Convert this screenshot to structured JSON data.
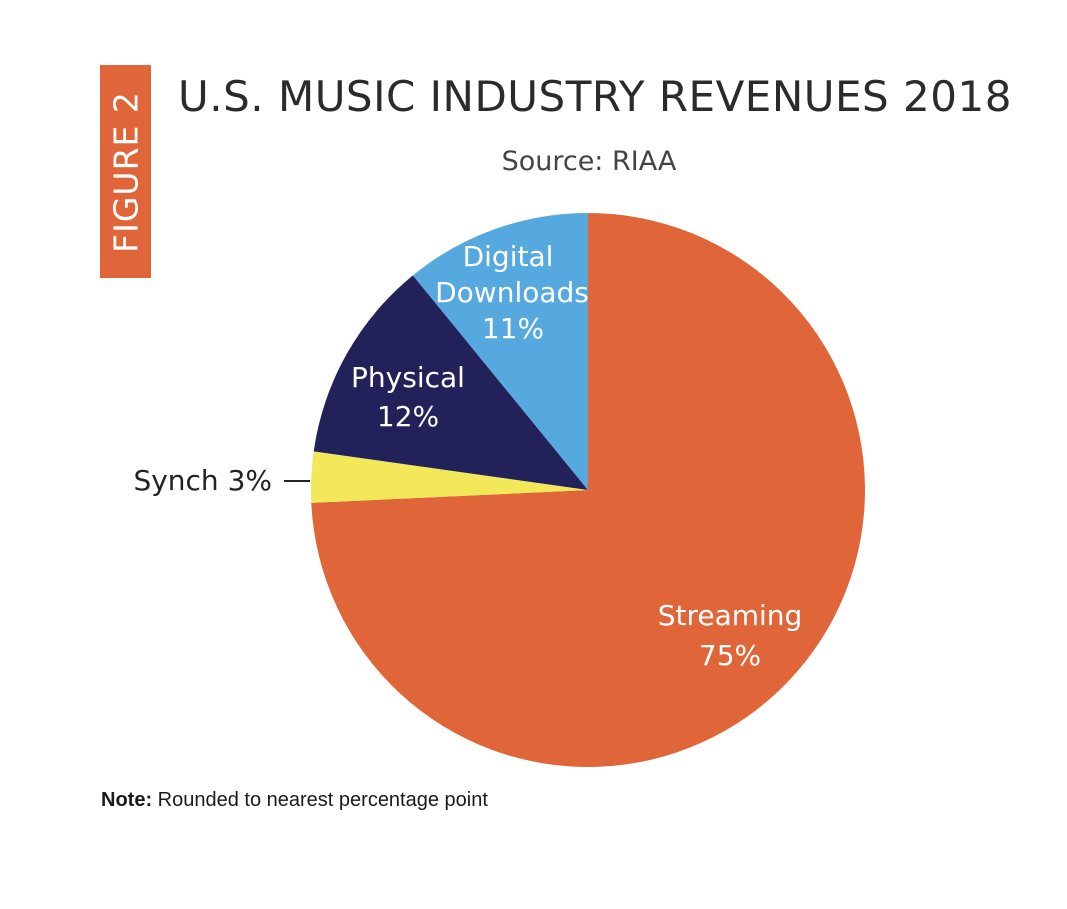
{
  "figure_label": "FIGURE 2",
  "chart_data": {
    "type": "pie",
    "title": "U.S. MUSIC INDUSTRY REVENUES 2018",
    "subtitle": "Source: RIAA",
    "slices": [
      {
        "name": "Streaming",
        "value": 75,
        "label": "75%",
        "color": "#e0663a"
      },
      {
        "name": "Synch",
        "value": 3,
        "label": "3%",
        "color": "#f2e85a"
      },
      {
        "name": "Physical",
        "value": 12,
        "label": "12%",
        "color": "#222159"
      },
      {
        "name": "Digital Downloads",
        "value": 11,
        "label": "11%",
        "color": "#56a9de"
      }
    ],
    "start_angle_deg": 0,
    "direction": "clockwise"
  },
  "labels": {
    "streaming": [
      "Streaming",
      "75%"
    ],
    "synch": "Synch 3%",
    "physical": [
      "Physical",
      "12%"
    ],
    "digital": [
      "Digital",
      "Downloads",
      "11%"
    ]
  },
  "note": {
    "bold": "Note:",
    "text": " Rounded to nearest percentage point"
  }
}
